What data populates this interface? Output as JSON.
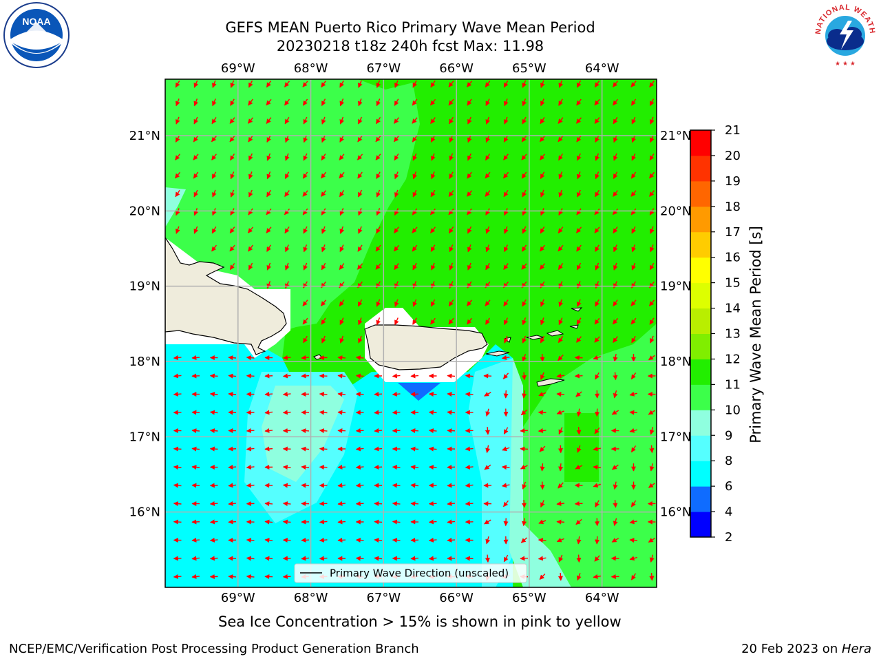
{
  "title": {
    "line1": "GEFS MEAN Puerto Rico Primary Wave Mean Period",
    "line2": "20230218 t18z 240h fcst   Max: 11.98"
  },
  "axes": {
    "lon_labels": [
      "69°W",
      "68°W",
      "67°W",
      "66°W",
      "65°W",
      "64°W"
    ],
    "lat_labels": [
      "21°N",
      "20°N",
      "19°N",
      "18°N",
      "17°N",
      "16°N"
    ],
    "lon_values": [
      -69,
      -68,
      -67,
      -66,
      -65,
      -64
    ],
    "lat_values": [
      21,
      20,
      19,
      18,
      17,
      16
    ],
    "lon_range": [
      -70.0,
      -63.25
    ],
    "lat_range": [
      15.0,
      21.75
    ]
  },
  "colorbar": {
    "label": "Primary Wave Mean Period [s]",
    "ticks": [
      "2",
      "4",
      "6",
      "8",
      "9",
      "10",
      "11",
      "12",
      "13",
      "14",
      "15",
      "16",
      "17",
      "18",
      "19",
      "20",
      "21"
    ],
    "colors": [
      "#0000ff",
      "#0f6cff",
      "#00ffff",
      "#55ffff",
      "#8fffdf",
      "#3cff4a",
      "#22ee00",
      "#80ee00",
      "#b9ee00",
      "#ddff00",
      "#ffff00",
      "#ffcc00",
      "#ff9a00",
      "#ff6600",
      "#ff3300",
      "#ff0000"
    ]
  },
  "legend": {
    "label": "Primary Wave Direction (unscaled)"
  },
  "colors": {
    "land": "#efecdc",
    "arrow": "#ff0000",
    "period_10_11": "#3cff4a",
    "period_11_12": "#22ee00",
    "period_9_10": "#8fffdf",
    "period_8_9": "#55ffff",
    "period_6_8": "#00ffff",
    "period_4_6": "#0f6cff",
    "grid": "#b0b0b0"
  },
  "note": "Sea Ice Concentration > 15% is shown in pink to yellow",
  "footer": {
    "left": "NCEP/EMC/Verification Post Processing Product Generation Branch",
    "right_prefix": "20 Feb 2023 on ",
    "right_host": "Hera"
  },
  "logos": {
    "noaa_text": "NOAA",
    "nws_text": "NATIONAL WEATHER SERVICE"
  }
}
